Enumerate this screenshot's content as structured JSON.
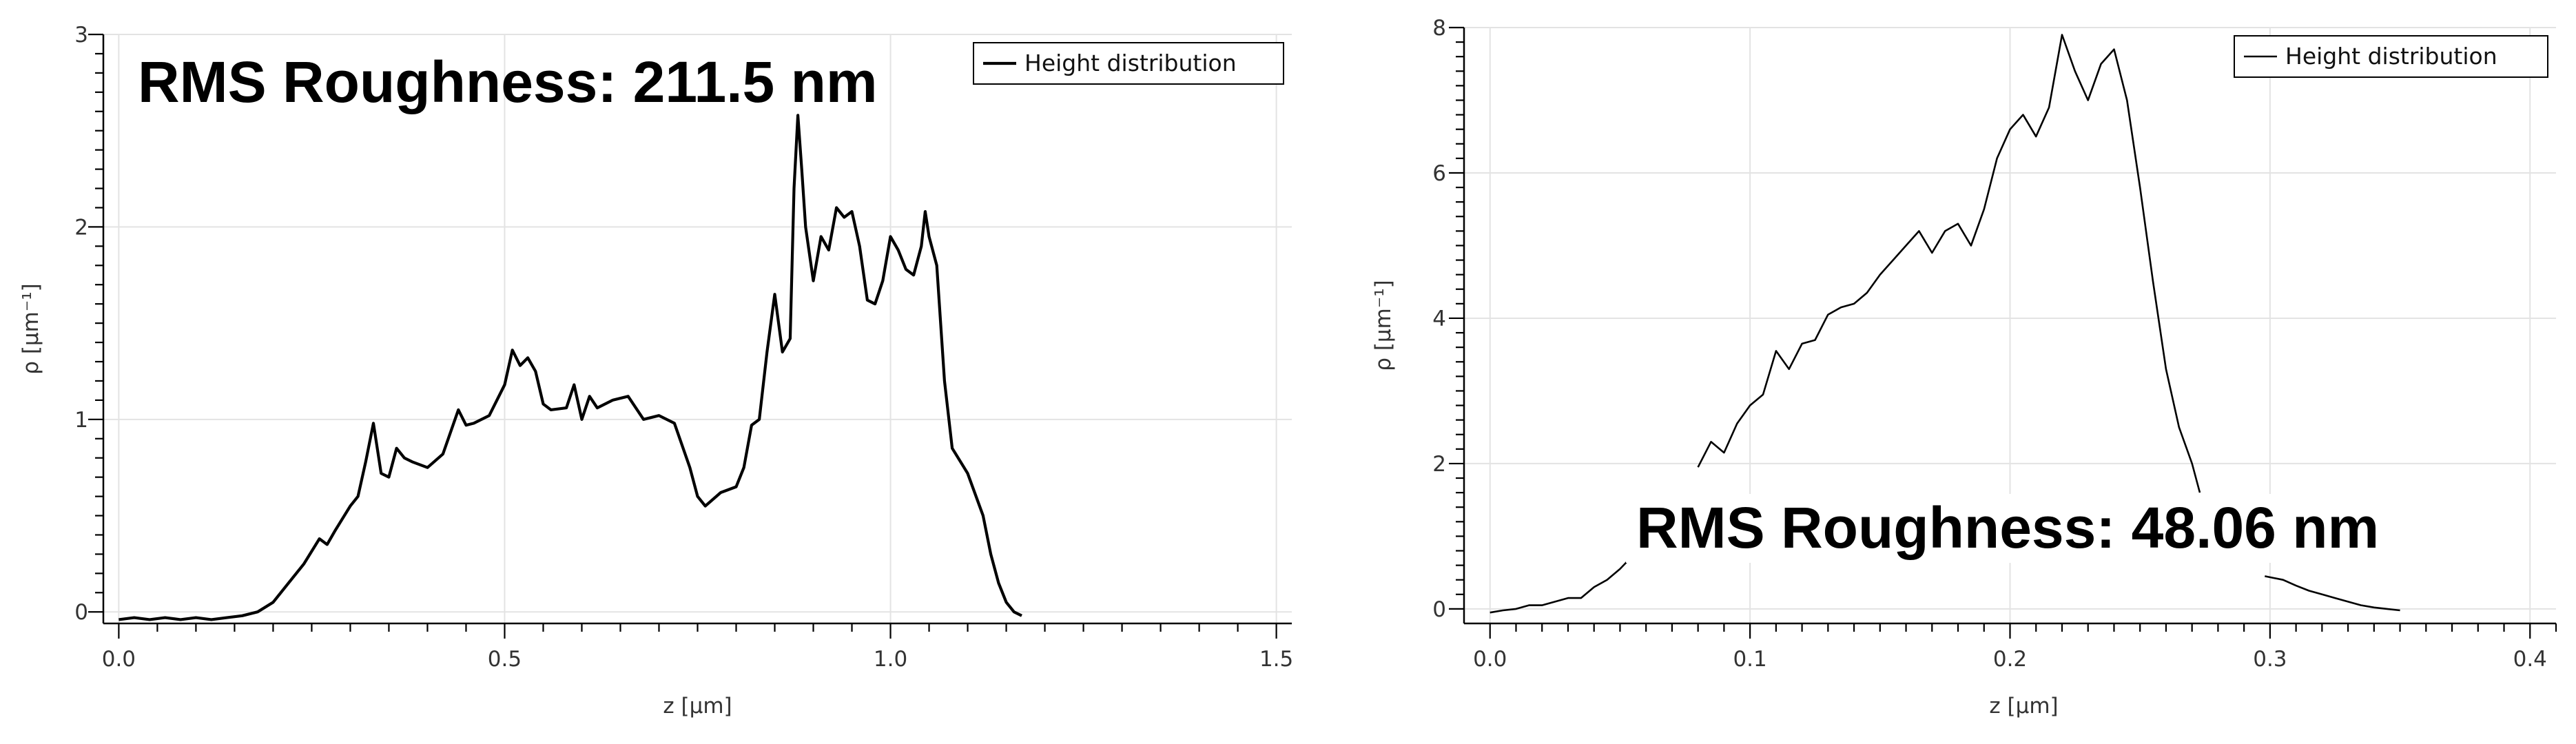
{
  "chart_data": [
    {
      "type": "line",
      "title": "",
      "xlabel": "z [µm]",
      "ylabel": "ρ [µm⁻¹]",
      "xlim": [
        -0.02,
        1.52
      ],
      "ylim": [
        -0.06,
        3.0
      ],
      "x_ticks": [
        0.0,
        0.5,
        1.0,
        1.5
      ],
      "x_tick_labels": [
        "0.0",
        "0.5",
        "1.0",
        "1.5"
      ],
      "y_ticks": [
        0,
        1,
        2,
        3
      ],
      "y_tick_labels": [
        "0",
        "1",
        "2",
        "3"
      ],
      "grid": true,
      "legend": "top-right",
      "annotation": "RMS Roughness: 211.5 nm",
      "series": [
        {
          "name": "Height distribution",
          "x": [
            0.0,
            0.02,
            0.04,
            0.06,
            0.08,
            0.1,
            0.12,
            0.14,
            0.16,
            0.18,
            0.2,
            0.22,
            0.24,
            0.26,
            0.27,
            0.28,
            0.3,
            0.31,
            0.32,
            0.33,
            0.34,
            0.35,
            0.36,
            0.37,
            0.38,
            0.4,
            0.42,
            0.44,
            0.45,
            0.46,
            0.48,
            0.5,
            0.51,
            0.52,
            0.53,
            0.54,
            0.55,
            0.56,
            0.58,
            0.59,
            0.6,
            0.61,
            0.62,
            0.64,
            0.66,
            0.68,
            0.7,
            0.72,
            0.74,
            0.75,
            0.76,
            0.78,
            0.8,
            0.81,
            0.82,
            0.83,
            0.84,
            0.85,
            0.86,
            0.87,
            0.875,
            0.88,
            0.885,
            0.89,
            0.9,
            0.91,
            0.92,
            0.93,
            0.94,
            0.95,
            0.96,
            0.97,
            0.98,
            0.99,
            1.0,
            1.01,
            1.02,
            1.03,
            1.04,
            1.045,
            1.05,
            1.06,
            1.07,
            1.08,
            1.1,
            1.12,
            1.13,
            1.14,
            1.15,
            1.16,
            1.17
          ],
          "values": [
            -0.04,
            -0.03,
            -0.04,
            -0.03,
            -0.04,
            -0.03,
            -0.04,
            -0.03,
            -0.02,
            0.0,
            0.05,
            0.15,
            0.25,
            0.38,
            0.35,
            0.42,
            0.55,
            0.6,
            0.78,
            0.98,
            0.72,
            0.7,
            0.85,
            0.8,
            0.78,
            0.75,
            0.82,
            1.05,
            0.97,
            0.98,
            1.02,
            1.18,
            1.36,
            1.28,
            1.32,
            1.25,
            1.08,
            1.05,
            1.06,
            1.18,
            1.0,
            1.12,
            1.06,
            1.1,
            1.12,
            1.0,
            1.02,
            0.98,
            0.75,
            0.6,
            0.55,
            0.62,
            0.65,
            0.75,
            0.97,
            1.0,
            1.35,
            1.65,
            1.35,
            1.42,
            2.2,
            2.58,
            2.3,
            2.0,
            1.72,
            1.95,
            1.88,
            2.1,
            2.05,
            2.08,
            1.9,
            1.62,
            1.6,
            1.72,
            1.95,
            1.88,
            1.78,
            1.75,
            1.9,
            2.08,
            1.95,
            1.8,
            1.2,
            0.85,
            0.72,
            0.5,
            0.3,
            0.15,
            0.05,
            0.0,
            -0.02
          ]
        }
      ]
    },
    {
      "type": "line",
      "title": "",
      "xlabel": "z [µm]",
      "ylabel": "ρ [µm⁻¹]",
      "xlim": [
        -0.01,
        0.41
      ],
      "ylim": [
        -0.2,
        8.0
      ],
      "x_ticks": [
        0.0,
        0.1,
        0.2,
        0.3,
        0.4
      ],
      "x_tick_labels": [
        "0.0",
        "0.1",
        "0.2",
        "0.3",
        "0.4"
      ],
      "y_ticks": [
        0,
        2,
        4,
        6,
        8
      ],
      "y_tick_labels": [
        "0",
        "2",
        "4",
        "6",
        "8"
      ],
      "grid": true,
      "legend": "top-right",
      "annotation": "RMS Roughness: 48.06 nm",
      "series": [
        {
          "name": "Height distribution",
          "x": [
            0.0,
            0.005,
            0.01,
            0.015,
            0.02,
            0.025,
            0.03,
            0.035,
            0.04,
            0.045,
            0.05,
            0.054,
            0.08,
            0.085,
            0.09,
            0.095,
            0.1,
            0.105,
            0.11,
            0.115,
            0.12,
            0.125,
            0.13,
            0.135,
            0.14,
            0.145,
            0.15,
            0.155,
            0.16,
            0.165,
            0.17,
            0.175,
            0.18,
            0.185,
            0.19,
            0.195,
            0.2,
            0.205,
            0.21,
            0.215,
            0.22,
            0.225,
            0.23,
            0.235,
            0.24,
            0.245,
            0.25,
            0.255,
            0.26,
            0.265,
            0.27,
            0.273,
            0.298,
            0.305,
            0.31,
            0.315,
            0.32,
            0.325,
            0.33,
            0.335,
            0.34,
            0.345,
            0.35
          ],
          "values": [
            -0.05,
            -0.02,
            0.0,
            0.05,
            0.05,
            0.1,
            0.15,
            0.15,
            0.3,
            0.4,
            0.55,
            0.7,
            1.95,
            2.3,
            2.15,
            2.55,
            2.8,
            2.95,
            3.55,
            3.3,
            3.65,
            3.7,
            4.05,
            4.15,
            4.2,
            4.35,
            4.6,
            4.8,
            5.0,
            5.2,
            4.9,
            5.2,
            5.3,
            5.0,
            5.5,
            6.2,
            6.6,
            6.8,
            6.5,
            6.9,
            7.9,
            7.4,
            7.0,
            7.5,
            7.7,
            7.0,
            5.8,
            4.5,
            3.3,
            2.5,
            2.0,
            1.6,
            0.45,
            0.4,
            0.32,
            0.25,
            0.2,
            0.15,
            0.1,
            0.05,
            0.02,
            0.0,
            -0.02
          ]
        }
      ]
    }
  ]
}
